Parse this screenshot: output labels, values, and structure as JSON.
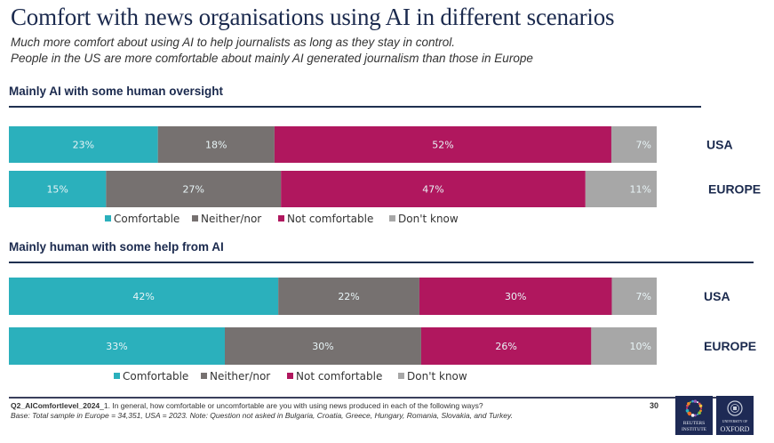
{
  "header": {
    "title": "Comfort with news organisations using AI in different scenarios",
    "subtitle_line1": "Much more comfort about using AI to help journalists as long as they stay in control.",
    "subtitle_line2": "People in the US are more comfortable about mainly AI generated journalism than those in Europe"
  },
  "colors": {
    "comfortable": "#2bb0bc",
    "neither": "#767170",
    "not_comfortable": "#b0175e",
    "dont_know": "#a7a7a7",
    "navy": "#1b2a4e"
  },
  "chart_data": [
    {
      "type": "bar",
      "orientation": "horizontal-stacked-100",
      "title": "Mainly AI with some human oversight",
      "categories": [
        "USA",
        "EUROPE"
      ],
      "series": [
        {
          "name": "Comfortable",
          "values": [
            23,
            15
          ],
          "labels": [
            "23%",
            "15%"
          ]
        },
        {
          "name": "Neither/nor",
          "values": [
            18,
            27
          ],
          "labels": [
            "18%",
            "27%"
          ]
        },
        {
          "name": "Not comfortable",
          "values": [
            52,
            47
          ],
          "labels": [
            "52%",
            "47%"
          ]
        },
        {
          "name": "Don't know",
          "values": [
            7,
            11
          ],
          "labels": [
            "7%",
            "11%"
          ]
        }
      ],
      "xlabel": "",
      "ylabel": "",
      "xlim": [
        0,
        100
      ],
      "legend": "bottom",
      "grid": false
    },
    {
      "type": "bar",
      "orientation": "horizontal-stacked-100",
      "title": "Mainly human with some help from AI",
      "categories": [
        "USA",
        "EUROPE"
      ],
      "series": [
        {
          "name": "Comfortable",
          "values": [
            42,
            33
          ],
          "labels": [
            "42%",
            "33%"
          ]
        },
        {
          "name": "Neither/nor",
          "values": [
            22,
            30
          ],
          "labels": [
            "22%",
            "30%"
          ]
        },
        {
          "name": "Not comfortable",
          "values": [
            30,
            26
          ],
          "labels": [
            "30%",
            "26%"
          ]
        },
        {
          "name": "Don't know",
          "values": [
            7,
            10
          ],
          "labels": [
            "7%",
            "10%"
          ]
        }
      ],
      "xlabel": "",
      "ylabel": "",
      "xlim": [
        0,
        100
      ],
      "legend": "bottom",
      "grid": false
    }
  ],
  "footer": {
    "question_code": "Q2_AIComfortlevel_2024",
    "question_text": "_1. In general, how comfortable or uncomfortable are you with using news produced in each of the following ways?",
    "base_note": "Base: Total sample in Europe = 34,351, USA = 2023. Note: Question not asked in Bulgaria, Croatia, Greece, Hungary, Romania, Slovakia, and Turkey.",
    "page_number": "30",
    "logo_reuters_line1": "REUTERS",
    "logo_reuters_line2": "INSTITUTE",
    "logo_oxford_line1": "UNIVERSITY OF",
    "logo_oxford_line2": "OXFORD"
  }
}
